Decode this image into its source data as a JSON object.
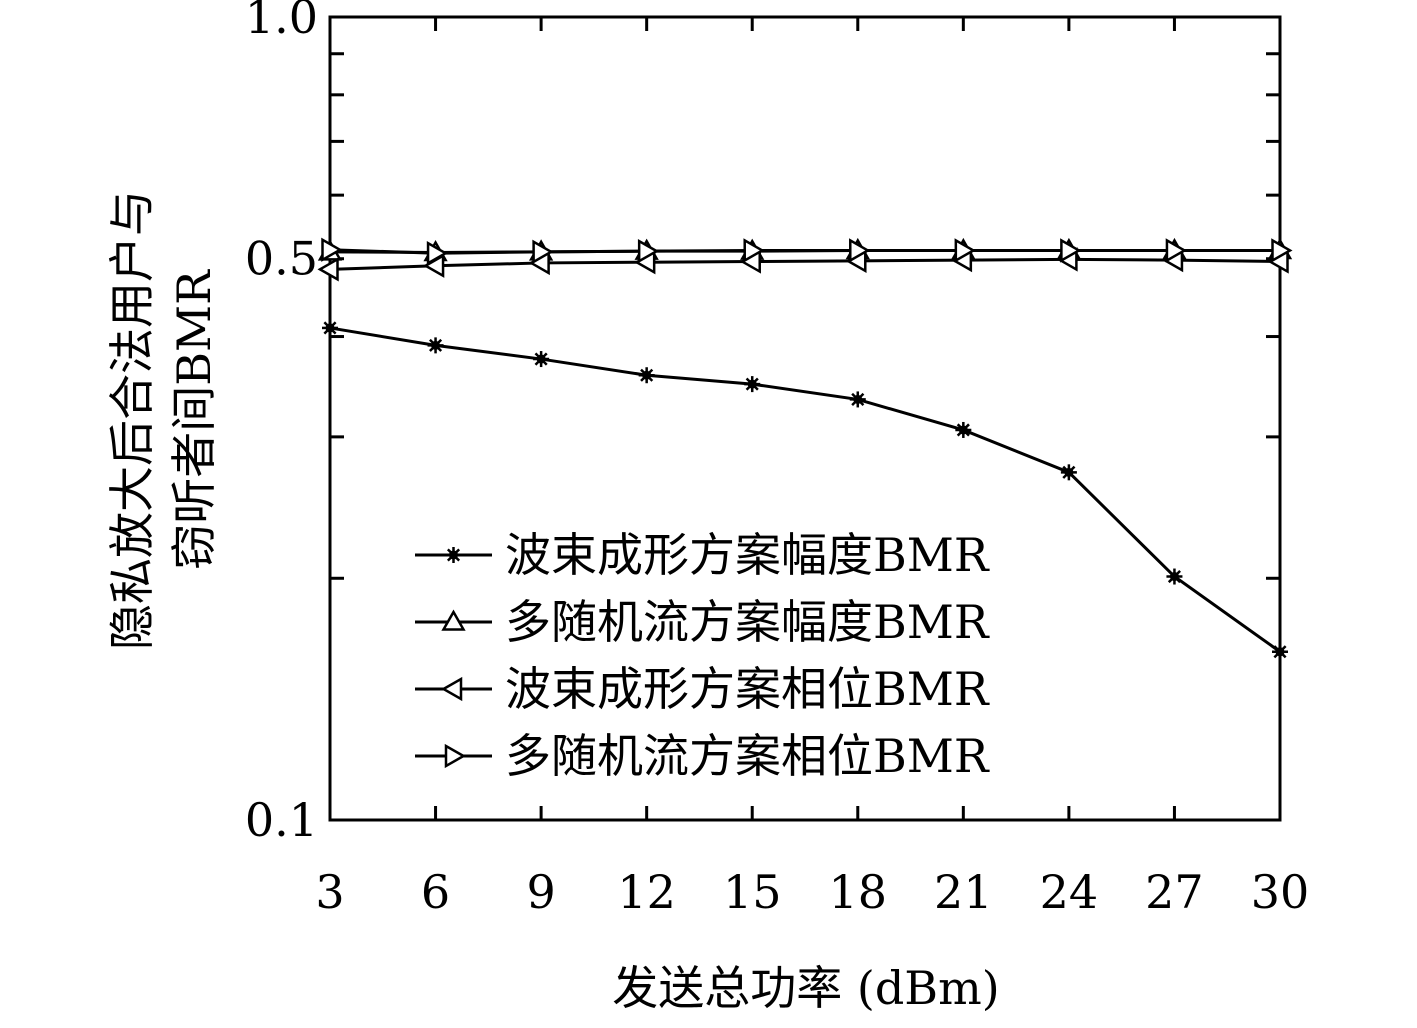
{
  "chart_data": {
    "type": "line",
    "title": "",
    "xlabel": "发送总功率 (dBm)",
    "ylabel_lines": [
      "隐私放大后合法用户与",
      "窃听者间BMR"
    ],
    "x": [
      3,
      6,
      9,
      12,
      15,
      18,
      21,
      24,
      27,
      30
    ],
    "xlim": [
      3,
      30
    ],
    "ylim": [
      0.1,
      1.0
    ],
    "yscale": "log",
    "yticks": [
      0.1,
      0.2,
      0.3,
      0.4,
      0.5,
      0.6,
      0.7,
      0.8,
      0.9,
      1.0
    ],
    "ytick_labels": [
      "0.1",
      "0.5",
      "1.0"
    ],
    "ytick_label_values": [
      0.1,
      0.5,
      1.0
    ],
    "grid": false,
    "legend_position": "lower-center",
    "series": [
      {
        "name": "波束成形方案幅度BMR",
        "marker": "star",
        "values": [
          0.41,
          0.39,
          0.375,
          0.358,
          0.349,
          0.334,
          0.306,
          0.271,
          0.201,
          0.162
        ]
      },
      {
        "name": "多随机流方案幅度BMR",
        "marker": "triangle-up",
        "values": [
          0.51,
          0.509,
          0.51,
          0.511,
          0.511,
          0.512,
          0.512,
          0.512,
          0.512,
          0.512
        ]
      },
      {
        "name": "波束成形方案相位BMR",
        "marker": "triangle-left",
        "values": [
          0.485,
          0.49,
          0.494,
          0.495,
          0.496,
          0.497,
          0.498,
          0.499,
          0.498,
          0.496
        ]
      },
      {
        "name": "多随机流方案相位BMR",
        "marker": "triangle-right",
        "values": [
          0.513,
          0.508,
          0.51,
          0.511,
          0.512,
          0.512,
          0.512,
          0.512,
          0.512,
          0.512
        ]
      }
    ]
  }
}
